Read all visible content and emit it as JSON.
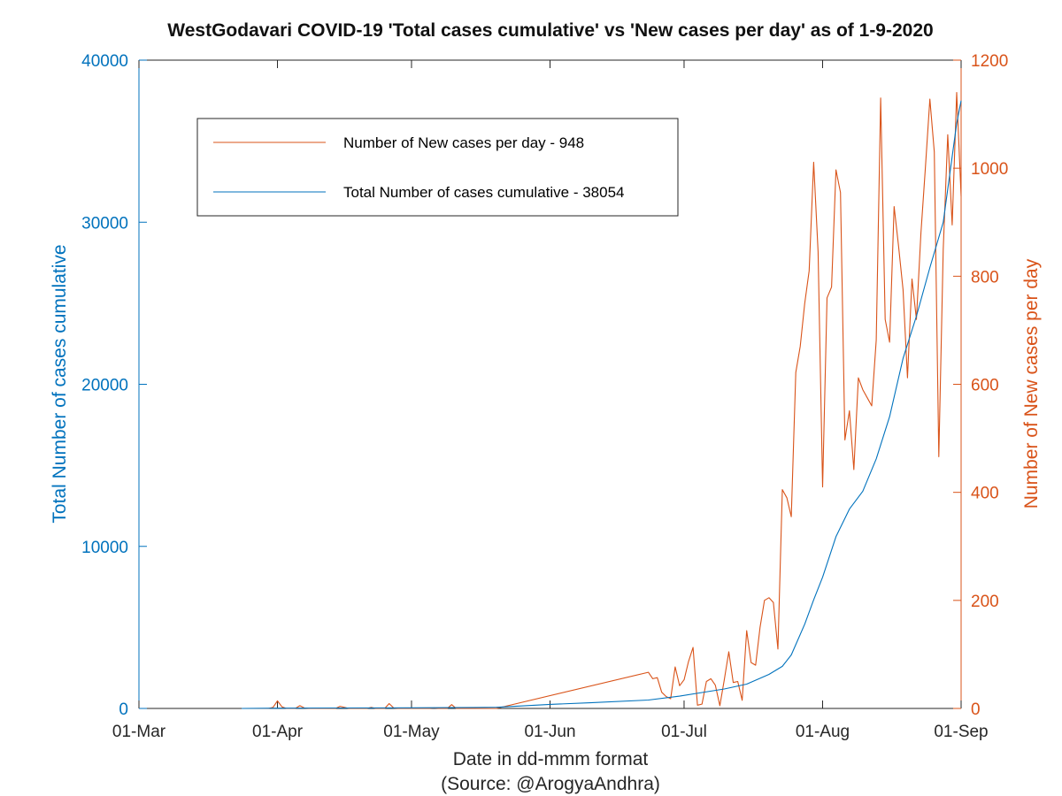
{
  "chart_data": {
    "type": "line",
    "title": "WestGodavari COVID-19 'Total cases cumulative' vs 'New cases per day' as of 1-9-2020",
    "xlabel": "Date in dd-mmm format",
    "xlabel_source": "(Source: @ArogyaAndhra)",
    "ylabel_left": "Total Number of cases cumulative",
    "ylabel_right": "Number of New cases per day",
    "x_range": [
      "2020-03-01",
      "2020-09-01"
    ],
    "x_ticks": [
      {
        "date": "2020-03-01",
        "label": "01-Mar"
      },
      {
        "date": "2020-04-01",
        "label": "01-Apr"
      },
      {
        "date": "2020-05-01",
        "label": "01-May"
      },
      {
        "date": "2020-06-01",
        "label": "01-Jun"
      },
      {
        "date": "2020-07-01",
        "label": "01-Jul"
      },
      {
        "date": "2020-08-01",
        "label": "01-Aug"
      },
      {
        "date": "2020-09-01",
        "label": "01-Sep"
      }
    ],
    "ylim_left": [
      0,
      40000
    ],
    "yticks_left": [
      0,
      10000,
      20000,
      30000,
      40000
    ],
    "ylim_right": [
      0,
      1200
    ],
    "yticks_right": [
      0,
      200,
      400,
      600,
      800,
      1000,
      1200
    ],
    "grid": false,
    "legend_position": "top-left",
    "colors": {
      "cumulative": "#0072BD",
      "new": "#D95319"
    },
    "series": [
      {
        "name": "Number of New cases per day - 948",
        "axis": "right",
        "color": "#D95319",
        "points": [
          [
            "2020-03-24",
            0
          ],
          [
            "2020-03-30",
            0
          ],
          [
            "2020-03-31",
            2
          ],
          [
            "2020-04-01",
            14
          ],
          [
            "2020-04-02",
            3
          ],
          [
            "2020-04-03",
            0
          ],
          [
            "2020-04-04",
            0
          ],
          [
            "2020-04-05",
            0
          ],
          [
            "2020-04-06",
            5
          ],
          [
            "2020-04-07",
            1
          ],
          [
            "2020-04-08",
            0
          ],
          [
            "2020-04-09",
            0
          ],
          [
            "2020-04-14",
            0
          ],
          [
            "2020-04-15",
            4
          ],
          [
            "2020-04-16",
            2
          ],
          [
            "2020-04-17",
            0
          ],
          [
            "2020-04-20",
            0
          ],
          [
            "2020-04-21",
            0
          ],
          [
            "2020-04-22",
            2
          ],
          [
            "2020-04-23",
            0
          ],
          [
            "2020-04-25",
            0
          ],
          [
            "2020-04-26",
            9
          ],
          [
            "2020-04-27",
            1
          ],
          [
            "2020-04-28",
            0
          ],
          [
            "2020-05-01",
            0
          ],
          [
            "2020-05-05",
            0
          ],
          [
            "2020-05-06",
            1
          ],
          [
            "2020-05-07",
            0
          ],
          [
            "2020-05-09",
            0
          ],
          [
            "2020-05-10",
            7
          ],
          [
            "2020-05-11",
            0
          ],
          [
            "2020-05-20",
            0
          ],
          [
            "2020-06-23",
            67
          ],
          [
            "2020-06-24",
            55
          ],
          [
            "2020-06-25",
            57
          ],
          [
            "2020-06-26",
            30
          ],
          [
            "2020-06-27",
            22
          ],
          [
            "2020-06-28",
            18
          ],
          [
            "2020-06-29",
            77
          ],
          [
            "2020-06-30",
            42
          ],
          [
            "2020-07-01",
            53
          ],
          [
            "2020-07-02",
            87
          ],
          [
            "2020-07-03",
            113
          ],
          [
            "2020-07-04",
            6
          ],
          [
            "2020-07-05",
            8
          ],
          [
            "2020-07-06",
            50
          ],
          [
            "2020-07-07",
            55
          ],
          [
            "2020-07-08",
            43
          ],
          [
            "2020-07-09",
            5
          ],
          [
            "2020-07-10",
            53
          ],
          [
            "2020-07-11",
            105
          ],
          [
            "2020-07-12",
            48
          ],
          [
            "2020-07-13",
            50
          ],
          [
            "2020-07-14",
            15
          ],
          [
            "2020-07-15",
            144
          ],
          [
            "2020-07-16",
            85
          ],
          [
            "2020-07-17",
            80
          ],
          [
            "2020-07-18",
            150
          ],
          [
            "2020-07-19",
            200
          ],
          [
            "2020-07-20",
            205
          ],
          [
            "2020-07-21",
            196
          ],
          [
            "2020-07-22",
            110
          ],
          [
            "2020-07-23",
            405
          ],
          [
            "2020-07-24",
            390
          ],
          [
            "2020-07-25",
            355
          ],
          [
            "2020-07-26",
            622
          ],
          [
            "2020-07-27",
            670
          ],
          [
            "2020-07-28",
            750
          ],
          [
            "2020-07-29",
            810
          ],
          [
            "2020-07-30",
            1011
          ],
          [
            "2020-07-31",
            845
          ],
          [
            "2020-08-01",
            410
          ],
          [
            "2020-08-02",
            760
          ],
          [
            "2020-08-03",
            780
          ],
          [
            "2020-08-04",
            997
          ],
          [
            "2020-08-05",
            955
          ],
          [
            "2020-08-06",
            497
          ],
          [
            "2020-08-07",
            551
          ],
          [
            "2020-08-08",
            442
          ],
          [
            "2020-08-09",
            612
          ],
          [
            "2020-08-10",
            590
          ],
          [
            "2020-08-11",
            575
          ],
          [
            "2020-08-12",
            560
          ],
          [
            "2020-08-13",
            682
          ],
          [
            "2020-08-14",
            1130
          ],
          [
            "2020-08-15",
            720
          ],
          [
            "2020-08-16",
            678
          ],
          [
            "2020-08-17",
            929
          ],
          [
            "2020-08-18",
            856
          ],
          [
            "2020-08-19",
            775
          ],
          [
            "2020-08-20",
            612
          ],
          [
            "2020-08-21",
            795
          ],
          [
            "2020-08-22",
            720
          ],
          [
            "2020-08-23",
            880
          ],
          [
            "2020-08-24",
            1000
          ],
          [
            "2020-08-25",
            1128
          ],
          [
            "2020-08-26",
            1030
          ],
          [
            "2020-08-27",
            466
          ],
          [
            "2020-08-28",
            850
          ],
          [
            "2020-08-29",
            1062
          ],
          [
            "2020-08-30",
            895
          ],
          [
            "2020-08-31",
            1140
          ],
          [
            "2020-09-01",
            948
          ]
        ]
      },
      {
        "name": "Total Number of cases cumulative - 38054",
        "axis": "left",
        "color": "#0072BD",
        "points": [
          [
            "2020-03-24",
            0
          ],
          [
            "2020-04-01",
            14
          ],
          [
            "2020-04-15",
            25
          ],
          [
            "2020-05-01",
            40
          ],
          [
            "2020-05-15",
            60
          ],
          [
            "2020-05-20",
            70
          ],
          [
            "2020-06-01",
            250
          ],
          [
            "2020-06-10",
            350
          ],
          [
            "2020-06-23",
            520
          ],
          [
            "2020-06-30",
            760
          ],
          [
            "2020-07-05",
            980
          ],
          [
            "2020-07-10",
            1200
          ],
          [
            "2020-07-15",
            1500
          ],
          [
            "2020-07-20",
            2100
          ],
          [
            "2020-07-23",
            2600
          ],
          [
            "2020-07-25",
            3300
          ],
          [
            "2020-07-28",
            5200
          ],
          [
            "2020-07-30",
            6700
          ],
          [
            "2020-08-01",
            8100
          ],
          [
            "2020-08-04",
            10600
          ],
          [
            "2020-08-07",
            12300
          ],
          [
            "2020-08-10",
            13400
          ],
          [
            "2020-08-13",
            15400
          ],
          [
            "2020-08-16",
            18000
          ],
          [
            "2020-08-19",
            21600
          ],
          [
            "2020-08-22",
            24200
          ],
          [
            "2020-08-25",
            27200
          ],
          [
            "2020-08-28",
            30000
          ],
          [
            "2020-08-31",
            36100
          ],
          [
            "2020-09-01",
            37500
          ]
        ]
      }
    ]
  }
}
